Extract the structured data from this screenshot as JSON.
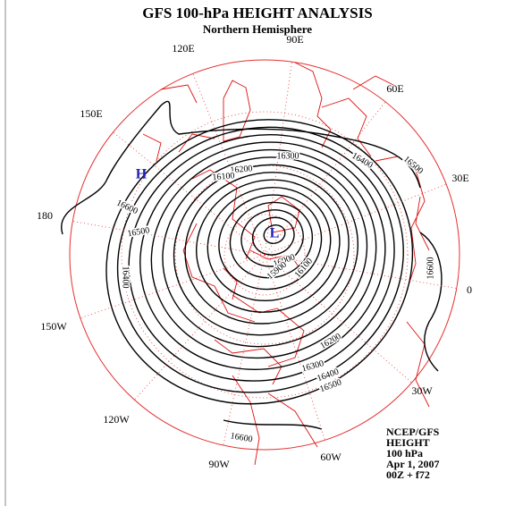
{
  "header": {
    "title": "GFS 100-hPa HEIGHT ANALYSIS",
    "subtitle": "Northern Hemisphere"
  },
  "longitude_labels": [
    "90E",
    "60E",
    "30E",
    "0",
    "30W",
    "60W",
    "90W",
    "120W",
    "150W",
    "180",
    "150E",
    "120E"
  ],
  "contour_labels": [
    16300,
    16400,
    16500,
    16200,
    16100,
    16600,
    16500,
    16400,
    16600,
    16200,
    16300,
    16400,
    16500,
    16600,
    16100,
    16000,
    15900
  ],
  "pressure_centers": [
    "H",
    "L"
  ],
  "footer": [
    "NCEP/GFS",
    "HEIGHT",
    "100 hPa",
    "Apr 1, 2007",
    "00Z + f72"
  ]
}
